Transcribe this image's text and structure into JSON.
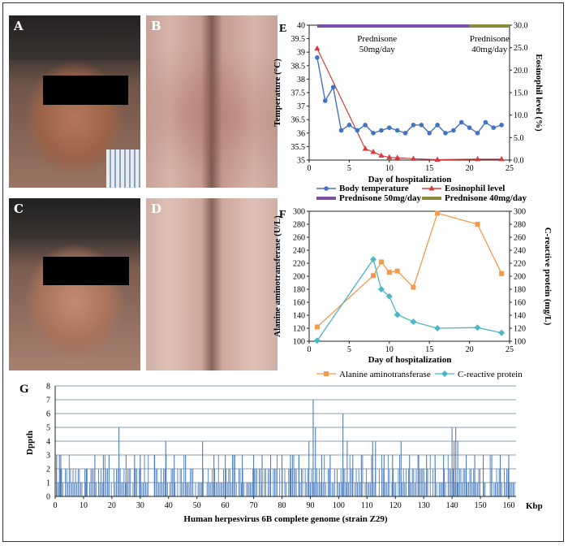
{
  "panels": {
    "A": "A",
    "B": "B",
    "C": "C",
    "D": "D",
    "E": "E",
    "F": "F",
    "G": "G"
  },
  "colors": {
    "temp": "#4472c4",
    "eos": "#d93b3b",
    "pred50": "#7b4fa6",
    "pred40": "#8f8a3a",
    "alt": "#f39a4b",
    "crp": "#4bb6c4",
    "depth": "#4e7fc0"
  },
  "chart_data": [
    {
      "id": "E",
      "type": "line",
      "xlabel": "Day of hospitalization",
      "ylabel": "Temperature (°C)",
      "y2label": "Eosinophil level (%)",
      "xlim": [
        0,
        25
      ],
      "xticks": [
        "0",
        "5",
        "10",
        "15",
        "20",
        "25"
      ],
      "ylim": [
        35,
        40
      ],
      "yticks": [
        "35",
        "35.5",
        "36",
        "36.5",
        "37",
        "37.5",
        "38",
        "38.5",
        "39",
        "39.5",
        "40"
      ],
      "y2lim": [
        0,
        30
      ],
      "y2ticks": [
        "0.0",
        "5.0",
        "10.0",
        "15.0",
        "20.0",
        "25.0",
        "30.0"
      ],
      "treatment": [
        {
          "name": "Prednisone 50mg/day",
          "label_line1": "Prednisone",
          "label_line2": "50mg/day",
          "start": 1,
          "end": 20
        },
        {
          "name": "Prednisone 40mg/day",
          "label_line1": "Prednisone",
          "label_line2": "40mg/day",
          "start": 20,
          "end": 25
        }
      ],
      "series": [
        {
          "name": "Body temperature",
          "axis": "left",
          "x": [
            1,
            2,
            3,
            4,
            5,
            6,
            7,
            8,
            9,
            10,
            11,
            12,
            13,
            14,
            15,
            16,
            17,
            18,
            19,
            20,
            21,
            22,
            23,
            24
          ],
          "values": [
            38.8,
            37.2,
            37.7,
            36.1,
            36.3,
            36.1,
            36.3,
            36.0,
            36.1,
            36.2,
            36.1,
            36.0,
            36.3,
            36.3,
            36.0,
            36.3,
            36.0,
            36.1,
            36.4,
            36.2,
            36.0,
            36.4,
            36.2,
            36.3
          ]
        },
        {
          "name": "Eosinophil level",
          "axis": "right",
          "x": [
            1,
            7,
            8,
            9,
            10,
            11,
            13,
            16,
            21,
            24
          ],
          "values": [
            24.8,
            2.5,
            1.8,
            1.0,
            0.6,
            0.5,
            0.3,
            0.1,
            0.2,
            0.2
          ]
        }
      ],
      "legend": [
        "Body temperature",
        "Eosinophil level",
        "Prednisone 50mg/day",
        "Prednisone 40mg/day"
      ]
    },
    {
      "id": "F",
      "type": "line",
      "xlabel": "Day of hospitalization",
      "ylabel": "Alanine aminotransferase (U/L)",
      "y2label": "C-reactive protein (mg/L)",
      "xlim": [
        0,
        25
      ],
      "xticks": [
        "0",
        "5",
        "10",
        "15",
        "20",
        "25"
      ],
      "ylim": [
        100,
        300
      ],
      "yticks": [
        "100",
        "120",
        "140",
        "160",
        "180",
        "200",
        "220",
        "240",
        "260",
        "280",
        "300"
      ],
      "y2lim": [
        100,
        300
      ],
      "y2ticks": [
        "100",
        "120",
        "140",
        "160",
        "180",
        "200",
        "220",
        "240",
        "260",
        "280",
        "300"
      ],
      "series": [
        {
          "name": "Alanine aminotransferase",
          "axis": "left",
          "x": [
            1,
            8,
            9,
            10,
            11,
            13,
            16,
            21,
            24
          ],
          "values": [
            122,
            201,
            222,
            206,
            208,
            183,
            297,
            280,
            204
          ]
        },
        {
          "name": "C-reactive protein",
          "axis": "right",
          "x": [
            1,
            8,
            9,
            10,
            11,
            13,
            16,
            21,
            24
          ],
          "values": [
            101,
            226,
            180,
            169,
            141,
            130,
            120,
            121,
            113
          ]
        }
      ],
      "legend": [
        "Alanine aminotransferase",
        "C-reactive protein"
      ]
    },
    {
      "id": "G",
      "type": "bar",
      "xlabel": "Human herpesvirus 6B complete genome (strain Z29)",
      "ylabel": "Dppth",
      "xunit": "Kbp",
      "xlim": [
        0,
        162
      ],
      "xticks": [
        "0",
        "10",
        "20",
        "30",
        "40",
        "50",
        "60",
        "70",
        "80",
        "90",
        "100",
        "110",
        "120",
        "130",
        "140",
        "150",
        "160"
      ],
      "ylim": [
        0,
        8
      ],
      "yticks": [
        "0",
        "1",
        "2",
        "3",
        "4",
        "5",
        "6",
        "7",
        "8"
      ],
      "peaks": [
        {
          "x": 0.5,
          "value": 3
        },
        {
          "x": 1.5,
          "value": 3
        },
        {
          "x": 2,
          "value": 3
        },
        {
          "x": 10.5,
          "value": 2
        },
        {
          "x": 11,
          "value": 2
        },
        {
          "x": 14,
          "value": 3
        },
        {
          "x": 17,
          "value": 3
        },
        {
          "x": 19,
          "value": 3
        },
        {
          "x": 22.5,
          "value": 5
        },
        {
          "x": 25,
          "value": 3
        },
        {
          "x": 28,
          "value": 3
        },
        {
          "x": 30,
          "value": 3
        },
        {
          "x": 35,
          "value": 3
        },
        {
          "x": 39,
          "value": 4
        },
        {
          "x": 42,
          "value": 3
        },
        {
          "x": 46,
          "value": 3
        },
        {
          "x": 52,
          "value": 4
        },
        {
          "x": 56,
          "value": 3
        },
        {
          "x": 60,
          "value": 3
        },
        {
          "x": 63,
          "value": 3
        },
        {
          "x": 66,
          "value": 3
        },
        {
          "x": 70,
          "value": 3
        },
        {
          "x": 73,
          "value": 3
        },
        {
          "x": 76,
          "value": 3
        },
        {
          "x": 80,
          "value": 3
        },
        {
          "x": 83,
          "value": 3
        },
        {
          "x": 86,
          "value": 3
        },
        {
          "x": 89.5,
          "value": 4
        },
        {
          "x": 91,
          "value": 7
        },
        {
          "x": 91.8,
          "value": 5
        },
        {
          "x": 94,
          "value": 3
        },
        {
          "x": 97,
          "value": 3
        },
        {
          "x": 101.5,
          "value": 6
        },
        {
          "x": 103,
          "value": 4
        },
        {
          "x": 105,
          "value": 3
        },
        {
          "x": 108,
          "value": 3
        },
        {
          "x": 112,
          "value": 4
        },
        {
          "x": 113,
          "value": 4
        },
        {
          "x": 116,
          "value": 3
        },
        {
          "x": 119,
          "value": 3
        },
        {
          "x": 122,
          "value": 4
        },
        {
          "x": 125,
          "value": 3
        },
        {
          "x": 128,
          "value": 3
        },
        {
          "x": 131,
          "value": 3
        },
        {
          "x": 134,
          "value": 3
        },
        {
          "x": 137,
          "value": 3
        },
        {
          "x": 140,
          "value": 5
        },
        {
          "x": 140.7,
          "value": 4
        },
        {
          "x": 141.3,
          "value": 5
        },
        {
          "x": 142,
          "value": 4
        },
        {
          "x": 145,
          "value": 3
        },
        {
          "x": 148,
          "value": 3
        },
        {
          "x": 151,
          "value": 3
        },
        {
          "x": 154,
          "value": 3
        },
        {
          "x": 157,
          "value": 3
        },
        {
          "x": 160,
          "value": 3
        }
      ]
    }
  ]
}
